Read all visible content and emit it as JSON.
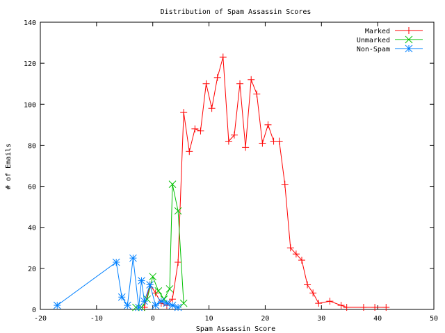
{
  "chart_data": {
    "type": "line",
    "title": "Distribution of Spam Assassin Scores",
    "xlabel": "Spam Assassin Score",
    "ylabel": "# of Emails",
    "xlim": [
      -20,
      50
    ],
    "ylim": [
      0,
      140
    ],
    "xticks": [
      -20,
      -10,
      0,
      10,
      20,
      30,
      40,
      50
    ],
    "yticks": [
      0,
      20,
      40,
      60,
      80,
      100,
      120,
      140
    ],
    "legend_position": "top-right",
    "series": [
      {
        "name": "Marked",
        "color": "#ff0000",
        "marker": "plus",
        "points": [
          [
            -2.5,
            1
          ],
          [
            -1.5,
            1
          ],
          [
            -0.5,
            12
          ],
          [
            0.5,
            8
          ],
          [
            1.5,
            3
          ],
          [
            2.5,
            2
          ],
          [
            3.5,
            5
          ],
          [
            4.5,
            23
          ],
          [
            5.5,
            96
          ],
          [
            6.5,
            77
          ],
          [
            7.5,
            88
          ],
          [
            8.5,
            87
          ],
          [
            9.5,
            110
          ],
          [
            10.5,
            98
          ],
          [
            11.5,
            113
          ],
          [
            12.5,
            123
          ],
          [
            13.5,
            82
          ],
          [
            14.5,
            85
          ],
          [
            15.5,
            110
          ],
          [
            16.5,
            79
          ],
          [
            17.5,
            112
          ],
          [
            18.5,
            105
          ],
          [
            19.5,
            81
          ],
          [
            20.5,
            90
          ],
          [
            21.5,
            82
          ],
          [
            22.5,
            82
          ],
          [
            23.5,
            61
          ],
          [
            24.5,
            30
          ],
          [
            25.5,
            27
          ],
          [
            26.5,
            24
          ],
          [
            27.5,
            12
          ],
          [
            28.5,
            8
          ],
          [
            29.5,
            3
          ],
          [
            31.5,
            4
          ],
          [
            33.5,
            2
          ],
          [
            34.5,
            1
          ],
          [
            37.5,
            1
          ],
          [
            39.5,
            1
          ],
          [
            41.5,
            1
          ]
        ]
      },
      {
        "name": "Unmarked",
        "color": "#00c000",
        "marker": "cross",
        "points": [
          [
            -3,
            1
          ],
          [
            -2,
            1
          ],
          [
            -1,
            5
          ],
          [
            0,
            16
          ],
          [
            1,
            9
          ],
          [
            2,
            5
          ],
          [
            3,
            10
          ],
          [
            3.5,
            61
          ],
          [
            4.5,
            48
          ],
          [
            5.5,
            3
          ]
        ]
      },
      {
        "name": "Non-Spam",
        "color": "#0080ff",
        "marker": "star",
        "points": [
          [
            -17,
            2
          ],
          [
            -6.5,
            23
          ],
          [
            -5.5,
            6
          ],
          [
            -4.5,
            2
          ],
          [
            -3.5,
            25
          ],
          [
            -2.5,
            1
          ],
          [
            -2,
            14
          ],
          [
            -1.5,
            4
          ],
          [
            -0.5,
            12
          ],
          [
            0.5,
            2
          ],
          [
            1.5,
            4
          ],
          [
            2.5,
            3
          ],
          [
            3.5,
            2
          ],
          [
            4.5,
            1
          ]
        ]
      }
    ]
  }
}
